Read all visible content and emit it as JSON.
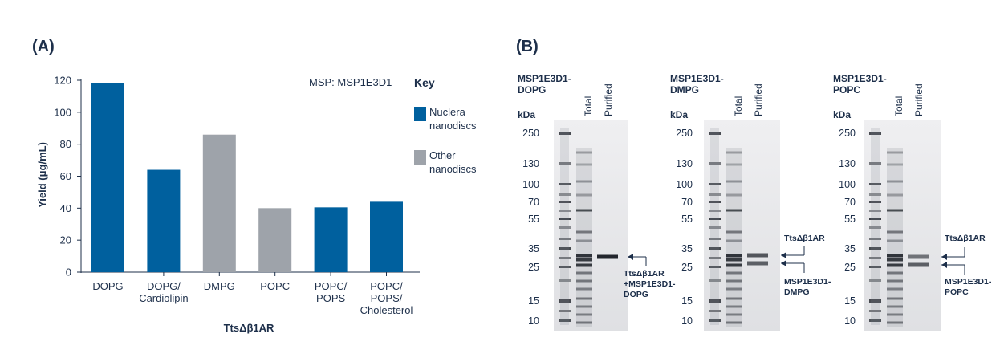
{
  "panel_a": {
    "label": "(A)",
    "note": "MSP: MSP1E3D1",
    "key": {
      "title": "Key",
      "items": [
        {
          "lines": [
            "Nuclera",
            "nanodiscs"
          ],
          "color": "#00609e"
        },
        {
          "lines": [
            "Other",
            "nanodiscs"
          ],
          "color": "#9ea3aa"
        }
      ]
    }
  },
  "chart_data": {
    "type": "bar",
    "title": "",
    "xlabel": "TtsΔβ1AR",
    "ylabel": "Yield (μg/mL)",
    "ylim": [
      0,
      120
    ],
    "yticks": [
      0,
      20,
      40,
      60,
      80,
      100,
      120
    ],
    "grid": false,
    "legend_position": "right",
    "categories": [
      [
        "DOPG"
      ],
      [
        "DOPG/",
        "Cardiolipin"
      ],
      [
        "DMPG"
      ],
      [
        "POPC"
      ],
      [
        "POPC/",
        "POPS"
      ],
      [
        "POPC/",
        "POPS/",
        "Cholesterol"
      ]
    ],
    "values": [
      118,
      64,
      86,
      40,
      40.5,
      44
    ],
    "group": [
      "Nuclera nanodiscs",
      "Nuclera nanodiscs",
      "Other nanodiscs",
      "Other nanodiscs",
      "Nuclera nanodiscs",
      "Nuclera nanodiscs"
    ],
    "colors": [
      "#00609e",
      "#00609e",
      "#9ea3aa",
      "#9ea3aa",
      "#00609e",
      "#00609e"
    ]
  },
  "panel_b": {
    "label": "(B)",
    "kda_label": "kDa",
    "lane_labels": [
      "Total",
      "Purified"
    ],
    "mw_markers": [
      "250",
      "130",
      "100",
      "70",
      "55",
      "35",
      "25",
      "15",
      "10"
    ],
    "gels": [
      {
        "title": [
          "MSP1E3D1-",
          "DOPG"
        ],
        "annotations": [
          {
            "lines": [
              "TtsΔβ1AR",
              "+MSP1E3D1-",
              "DOPG"
            ]
          }
        ]
      },
      {
        "title": [
          "MSP1E3D1-",
          "DMPG"
        ],
        "annotations": [
          {
            "lines": [
              "TtsΔβ1AR"
            ]
          },
          {
            "lines": [
              "MSP1E3D1-",
              "DMPG"
            ]
          }
        ]
      },
      {
        "title": [
          "MSP1E3D1-",
          "POPC"
        ],
        "annotations": [
          {
            "lines": [
              "TtsΔβ1AR"
            ]
          },
          {
            "lines": [
              "MSP1E3D1-",
              "POPC"
            ]
          }
        ]
      }
    ]
  }
}
